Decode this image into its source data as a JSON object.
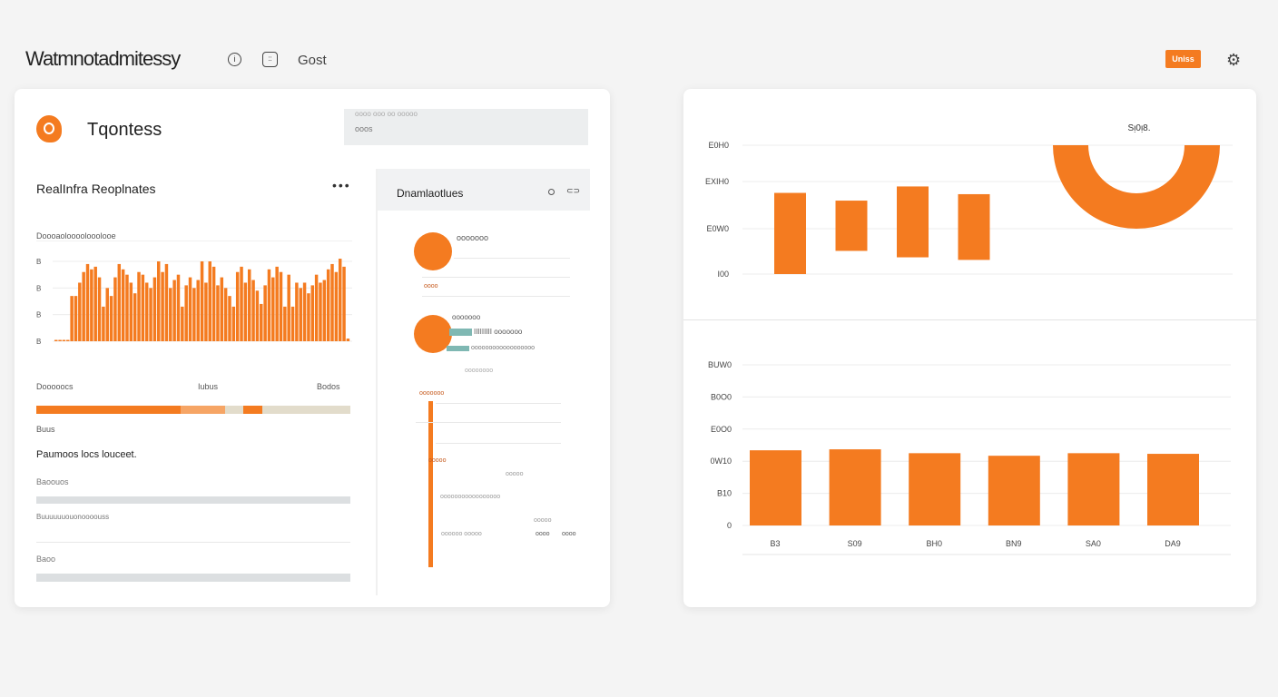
{
  "header": {
    "title": "Watmnotadmitessy",
    "info_icon": "info-circle-icon",
    "face_icon": "face-scan-icon",
    "link": "Gost",
    "button": "Uniss",
    "settings_icon": "gear-icon"
  },
  "colors": {
    "accent": "#f47b20",
    "accent_light": "#f6a565",
    "beige": "#e2dccb",
    "teal": "#7fb8b3",
    "panel": "#eceeef"
  },
  "left": {
    "brand": "Tqontess",
    "logo_icon": "brand-logo-icon",
    "search": {
      "line1": "oooo ooo   oo ooooo",
      "value": "ooos"
    },
    "panel_title": "RealInfra Reoplnates",
    "more_icon": "more-dots-icon",
    "chart": {
      "title": "Doooaoloooolooolooe",
      "yticks": [
        "B",
        "B",
        "B",
        "B"
      ]
    },
    "progress": {
      "labels": [
        "Dooooocs",
        "Iubus",
        "Bodos"
      ],
      "sub": "Buus",
      "segments": [
        {
          "color": "#f47b20",
          "fraction": 0.46
        },
        {
          "color": "#f6a565",
          "fraction": 0.14
        },
        {
          "color": "#e2dccb",
          "fraction": 0.06
        },
        {
          "color": "#f47b20",
          "fraction": 0.06
        },
        {
          "color": "#e2dccb",
          "fraction": 0.28
        }
      ]
    },
    "section_title": "Paumoos locs louceet.",
    "fields": [
      {
        "label": "Baoouos",
        "fill": 0
      },
      {
        "label": "Buuuuuuouonoooouss",
        "fill": 0
      },
      {
        "label": "Baoo",
        "fill": 0
      }
    ]
  },
  "middle": {
    "title": "Dnamlaotlues",
    "icons": [
      "circle-icon",
      "link-icon"
    ],
    "items": [
      {
        "title": "ooooooo",
        "sub": "oooo"
      },
      {
        "title": "ooooooo",
        "line1": "IIIIIIIII ooooooo",
        "line2": "oooooooooooooooooo",
        "line3": "oooooooo"
      }
    ],
    "timeline": {
      "label_top": "ooooooo",
      "label_mid": "ooooo",
      "a": "ooooo",
      "b": "ooooooooooooooooo",
      "c": "oooooo  ooooo",
      "d": "ooooo",
      "e": "oooo",
      "f": "oooo"
    }
  },
  "chart_data": [
    {
      "type": "line",
      "title": "Doooaoloooolooolooe",
      "yticks": [
        "B",
        "B",
        "B",
        "B"
      ],
      "ylim": [
        0,
        3
      ],
      "values": [
        0.05,
        0.05,
        0.05,
        0.05,
        1.7,
        1.7,
        2.2,
        2.6,
        2.9,
        2.7,
        2.8,
        2.4,
        1.3,
        2.0,
        1.7,
        2.4,
        2.9,
        2.7,
        2.5,
        2.2,
        1.8,
        2.6,
        2.5,
        2.2,
        2.0,
        2.4,
        3.0,
        2.6,
        2.9,
        2.0,
        2.3,
        2.5,
        1.3,
        2.1,
        2.4,
        2.0,
        2.3,
        3.0,
        2.2,
        3.0,
        2.8,
        2.1,
        2.4,
        2.0,
        1.7,
        1.3,
        2.6,
        2.8,
        2.2,
        2.7,
        2.3,
        1.9,
        1.4,
        2.1,
        2.7,
        2.4,
        2.8,
        2.6,
        1.3,
        2.5,
        1.3,
        2.2,
        2.0,
        2.2,
        1.8,
        2.1,
        2.5,
        2.2,
        2.3,
        2.7,
        2.9,
        2.6,
        3.1,
        2.8,
        0.1
      ]
    },
    {
      "type": "bar",
      "subtype": "floating",
      "yticks": [
        "E0H0",
        "EXIH0",
        "E0W0",
        "I00"
      ],
      "ylim": [
        0,
        100
      ],
      "ranges": [
        [
          0,
          63
        ],
        [
          18,
          57
        ],
        [
          13,
          68
        ],
        [
          11,
          62
        ]
      ]
    },
    {
      "type": "pie",
      "subtype": "half-donut",
      "title": "Sᴉ0ᴉ8.",
      "values": [
        100
      ]
    },
    {
      "type": "bar",
      "categories": [
        "B3",
        "S09",
        "BH0",
        "BN9",
        "SA0",
        "DA9"
      ],
      "yticks": [
        "BUW0",
        "B0O0",
        "E0O0",
        "0W10",
        "B10",
        "0"
      ],
      "ylim": [
        0,
        5
      ],
      "values": [
        2.34,
        2.37,
        2.25,
        2.17,
        2.25,
        2.23
      ]
    }
  ]
}
